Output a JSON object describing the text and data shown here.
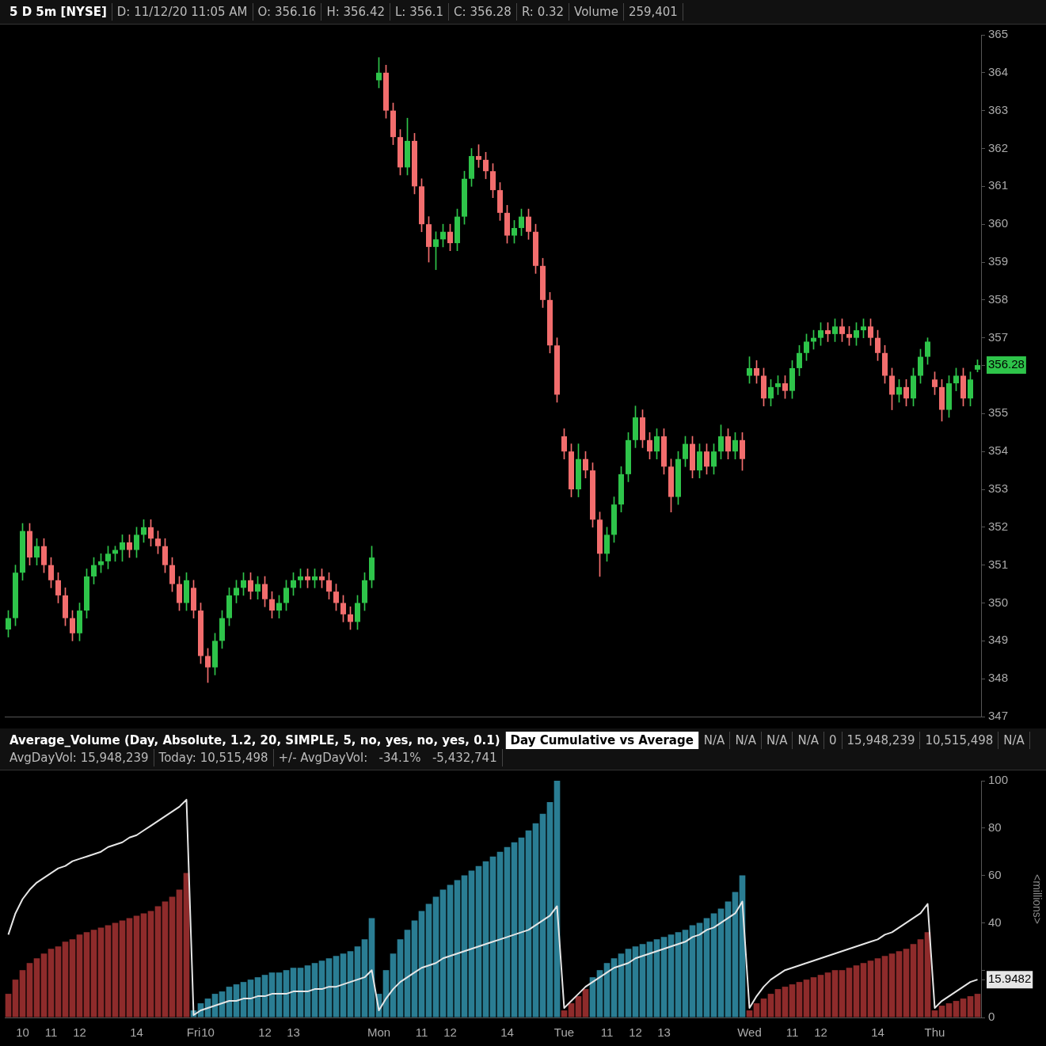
{
  "chart_data": [
    {
      "type": "candlestick",
      "title": "5 D 5m [NYSE]",
      "annotations": [
        "D: 11/12/20 11:05 AM",
        "O: 356.16",
        "H: 356.42",
        "L: 356.1",
        "C: 356.28",
        "R: 0.32",
        "Volume",
        "259,401"
      ],
      "categories": [
        null,
        null,
        null,
        null,
        null,
        null,
        null,
        null,
        null,
        null,
        null,
        null,
        null,
        null,
        null,
        null,
        null,
        null,
        null,
        null,
        null,
        null,
        null,
        null,
        null,
        null,
        null,
        null,
        null,
        null,
        null,
        null,
        null,
        null,
        null,
        null,
        null,
        null,
        null,
        null,
        null,
        null,
        null,
        null,
        null,
        null,
        null,
        null,
        null,
        null,
        null,
        null,
        null,
        null,
        null,
        null,
        null,
        null,
        null,
        null,
        null,
        null,
        null,
        null,
        null,
        null,
        null,
        null,
        null,
        null,
        null,
        null,
        null,
        null,
        null,
        null,
        null,
        null,
        null,
        null,
        null,
        null,
        null,
        null,
        null,
        null,
        null,
        null,
        null,
        null,
        null,
        null,
        null,
        null,
        null,
        null,
        null,
        null,
        null,
        null,
        null,
        null,
        null,
        null,
        null,
        null,
        null,
        null,
        null,
        null,
        null,
        null,
        null,
        null,
        null,
        null,
        null,
        null,
        null,
        null,
        null,
        null,
        null,
        null,
        null,
        null,
        null,
        null,
        null,
        null,
        null,
        null,
        null,
        null,
        null,
        null,
        null
      ],
      "ohlc": [
        [
          349.3,
          349.8,
          349.1,
          349.6
        ],
        [
          349.6,
          351.0,
          349.4,
          350.8
        ],
        [
          350.8,
          352.1,
          350.6,
          351.9
        ],
        [
          351.9,
          352.1,
          351.0,
          351.2
        ],
        [
          351.2,
          351.7,
          351.0,
          351.5
        ],
        [
          351.5,
          351.7,
          350.8,
          351.0
        ],
        [
          351.0,
          351.2,
          350.4,
          350.6
        ],
        [
          350.6,
          350.8,
          350.0,
          350.2
        ],
        [
          350.2,
          350.4,
          349.4,
          349.6
        ],
        [
          349.6,
          349.8,
          349.0,
          349.2
        ],
        [
          349.2,
          350.0,
          349.0,
          349.8
        ],
        [
          349.8,
          350.9,
          349.6,
          350.7
        ],
        [
          350.7,
          351.2,
          350.5,
          351.0
        ],
        [
          351.0,
          351.3,
          350.8,
          351.1
        ],
        [
          351.1,
          351.5,
          350.9,
          351.3
        ],
        [
          351.3,
          351.5,
          351.1,
          351.4
        ],
        [
          351.4,
          351.8,
          351.1,
          351.6
        ],
        [
          351.6,
          351.8,
          351.2,
          351.4
        ],
        [
          351.4,
          352.0,
          351.2,
          351.8
        ],
        [
          351.8,
          352.2,
          351.6,
          352.0
        ],
        [
          352.0,
          352.2,
          351.5,
          351.7
        ],
        [
          351.7,
          351.9,
          351.3,
          351.5
        ],
        [
          351.5,
          351.7,
          350.8,
          351.0
        ],
        [
          351.0,
          351.2,
          350.3,
          350.5
        ],
        [
          350.5,
          350.7,
          349.8,
          350.0
        ],
        [
          350.0,
          350.8,
          349.8,
          350.6
        ],
        [
          350.4,
          350.6,
          349.6,
          349.8
        ],
        [
          349.8,
          350.0,
          348.4,
          348.6
        ],
        [
          348.6,
          348.8,
          347.9,
          348.3
        ],
        [
          348.3,
          349.2,
          348.1,
          349.0
        ],
        [
          349.0,
          349.8,
          348.8,
          349.6
        ],
        [
          349.6,
          350.4,
          349.4,
          350.2
        ],
        [
          350.2,
          350.6,
          350.0,
          350.4
        ],
        [
          350.4,
          350.8,
          350.2,
          350.6
        ],
        [
          350.6,
          350.8,
          350.1,
          350.3
        ],
        [
          350.3,
          350.7,
          350.1,
          350.5
        ],
        [
          350.5,
          350.7,
          349.9,
          350.1
        ],
        [
          350.1,
          350.3,
          349.6,
          349.8
        ],
        [
          349.8,
          350.2,
          349.6,
          350.0
        ],
        [
          350.0,
          350.6,
          349.8,
          350.4
        ],
        [
          350.4,
          350.8,
          350.2,
          350.6
        ],
        [
          350.6,
          350.9,
          350.4,
          350.7
        ],
        [
          350.7,
          350.9,
          350.4,
          350.6
        ],
        [
          350.6,
          350.9,
          350.4,
          350.7
        ],
        [
          350.7,
          350.9,
          350.4,
          350.6
        ],
        [
          350.6,
          350.8,
          350.1,
          350.3
        ],
        [
          350.3,
          350.5,
          349.8,
          350.0
        ],
        [
          350.0,
          350.2,
          349.5,
          349.7
        ],
        [
          349.7,
          349.9,
          349.3,
          349.5
        ],
        [
          349.5,
          350.2,
          349.3,
          350.0
        ],
        [
          350.0,
          350.8,
          349.8,
          350.6
        ],
        [
          350.6,
          351.5,
          350.4,
          351.2
        ],
        [
          363.8,
          364.4,
          363.6,
          364.0
        ],
        [
          364.0,
          364.2,
          362.8,
          363.0
        ],
        [
          363.0,
          363.2,
          362.1,
          362.3
        ],
        [
          362.3,
          362.5,
          361.3,
          361.5
        ],
        [
          361.5,
          362.8,
          361.3,
          362.2
        ],
        [
          362.2,
          362.4,
          360.8,
          361.0
        ],
        [
          361.0,
          361.2,
          359.8,
          360.0
        ],
        [
          360.0,
          360.2,
          359.0,
          359.4
        ],
        [
          359.4,
          359.8,
          358.8,
          359.6
        ],
        [
          359.6,
          360.0,
          359.4,
          359.8
        ],
        [
          359.8,
          360.0,
          359.3,
          359.5
        ],
        [
          359.5,
          360.4,
          359.3,
          360.2
        ],
        [
          360.2,
          361.4,
          360.0,
          361.2
        ],
        [
          361.2,
          362.0,
          361.0,
          361.8
        ],
        [
          361.8,
          362.1,
          361.5,
          361.7
        ],
        [
          361.7,
          361.9,
          361.2,
          361.4
        ],
        [
          361.4,
          361.6,
          360.7,
          360.9
        ],
        [
          360.9,
          361.1,
          360.1,
          360.3
        ],
        [
          360.3,
          360.5,
          359.5,
          359.7
        ],
        [
          359.7,
          360.1,
          359.5,
          359.9
        ],
        [
          359.9,
          360.4,
          359.7,
          360.2
        ],
        [
          360.2,
          360.4,
          359.6,
          359.8
        ],
        [
          359.8,
          360.0,
          358.7,
          358.9
        ],
        [
          358.9,
          359.1,
          357.8,
          358.0
        ],
        [
          358.0,
          358.2,
          356.6,
          356.8
        ],
        [
          356.8,
          357.0,
          355.3,
          355.5
        ],
        [
          354.4,
          354.6,
          353.8,
          354.0
        ],
        [
          354.0,
          354.2,
          352.8,
          353.0
        ],
        [
          353.0,
          354.2,
          352.8,
          353.8
        ],
        [
          353.8,
          354.0,
          353.3,
          353.5
        ],
        [
          353.5,
          353.7,
          352.0,
          352.2
        ],
        [
          352.2,
          352.4,
          350.7,
          351.3
        ],
        [
          351.3,
          352.0,
          351.1,
          351.8
        ],
        [
          351.8,
          352.8,
          351.6,
          352.6
        ],
        [
          352.6,
          353.6,
          352.4,
          353.4
        ],
        [
          353.4,
          354.5,
          353.2,
          354.3
        ],
        [
          354.3,
          355.2,
          354.1,
          354.9
        ],
        [
          354.9,
          355.1,
          354.1,
          354.3
        ],
        [
          354.3,
          354.5,
          353.8,
          354.0
        ],
        [
          354.0,
          354.6,
          353.8,
          354.4
        ],
        [
          354.4,
          354.6,
          353.4,
          353.6
        ],
        [
          353.6,
          353.8,
          352.4,
          352.8
        ],
        [
          352.8,
          354.0,
          352.6,
          353.8
        ],
        [
          353.8,
          354.4,
          353.6,
          354.2
        ],
        [
          354.2,
          354.4,
          353.3,
          353.5
        ],
        [
          353.5,
          354.2,
          353.3,
          354.0
        ],
        [
          354.0,
          354.2,
          353.4,
          353.6
        ],
        [
          353.6,
          354.2,
          353.4,
          354.0
        ],
        [
          354.0,
          354.7,
          353.8,
          354.4
        ],
        [
          354.4,
          354.6,
          353.8,
          354.0
        ],
        [
          354.0,
          354.5,
          353.8,
          354.3
        ],
        [
          354.3,
          354.5,
          353.5,
          353.8
        ],
        [
          356.0,
          356.5,
          355.8,
          356.2
        ],
        [
          356.2,
          356.4,
          355.8,
          356.0
        ],
        [
          356.0,
          356.2,
          355.2,
          355.4
        ],
        [
          355.4,
          355.9,
          355.2,
          355.7
        ],
        [
          355.7,
          356.0,
          355.5,
          355.8
        ],
        [
          355.8,
          356.0,
          355.4,
          355.6
        ],
        [
          355.6,
          356.4,
          355.4,
          356.2
        ],
        [
          356.2,
          356.8,
          356.0,
          356.6
        ],
        [
          356.6,
          357.1,
          356.4,
          356.9
        ],
        [
          356.9,
          357.2,
          356.7,
          357.0
        ],
        [
          357.0,
          357.4,
          356.8,
          357.2
        ],
        [
          357.2,
          357.4,
          356.9,
          357.1
        ],
        [
          357.1,
          357.5,
          356.9,
          357.3
        ],
        [
          357.3,
          357.5,
          356.9,
          357.1
        ],
        [
          357.1,
          357.3,
          356.8,
          357.0
        ],
        [
          357.0,
          357.4,
          356.8,
          357.2
        ],
        [
          357.2,
          357.5,
          357.0,
          357.3
        ],
        [
          357.3,
          357.5,
          356.8,
          357.0
        ],
        [
          357.0,
          357.2,
          356.4,
          356.6
        ],
        [
          356.6,
          356.8,
          355.8,
          356.0
        ],
        [
          356.0,
          356.2,
          355.1,
          355.5
        ],
        [
          355.5,
          355.9,
          355.3,
          355.7
        ],
        [
          355.7,
          355.9,
          355.2,
          355.4
        ],
        [
          355.4,
          356.2,
          355.2,
          356.0
        ],
        [
          356.0,
          356.7,
          355.8,
          356.5
        ],
        [
          356.5,
          357.0,
          356.3,
          356.9
        ],
        [
          355.9,
          356.1,
          355.5,
          355.7
        ],
        [
          355.7,
          355.9,
          354.8,
          355.1
        ],
        [
          355.1,
          356.0,
          354.9,
          355.8
        ],
        [
          355.8,
          356.2,
          355.6,
          356.0
        ],
        [
          356.0,
          356.2,
          355.2,
          355.4
        ],
        [
          355.4,
          356.1,
          355.2,
          355.9
        ],
        [
          356.16,
          356.42,
          356.1,
          356.28
        ]
      ],
      "colors": [
        "#2ec44a",
        "#2ec44a",
        "#2ec44a",
        "#f26d6d",
        "#2ec44a",
        "#f26d6d",
        "#f26d6d",
        "#f26d6d",
        "#f26d6d",
        "#f26d6d",
        "#2ec44a",
        "#2ec44a",
        "#2ec44a",
        "#2ec44a",
        "#2ec44a",
        "#2ec44a",
        "#2ec44a",
        "#f26d6d",
        "#2ec44a",
        "#2ec44a",
        "#f26d6d",
        "#f26d6d",
        "#f26d6d",
        "#f26d6d",
        "#f26d6d",
        "#2ec44a",
        "#f26d6d",
        "#f26d6d",
        "#f26d6d",
        "#2ec44a",
        "#2ec44a",
        "#2ec44a",
        "#2ec44a",
        "#2ec44a",
        "#f26d6d",
        "#2ec44a",
        "#f26d6d",
        "#f26d6d",
        "#2ec44a",
        "#2ec44a",
        "#2ec44a",
        "#2ec44a",
        "#f26d6d",
        "#2ec44a",
        "#f26d6d",
        "#f26d6d",
        "#f26d6d",
        "#f26d6d",
        "#f26d6d",
        "#2ec44a",
        "#2ec44a",
        "#2ec44a",
        "#2ec44a",
        "#f26d6d",
        "#f26d6d",
        "#f26d6d",
        "#2ec44a",
        "#f26d6d",
        "#f26d6d",
        "#f26d6d",
        "#2ec44a",
        "#2ec44a",
        "#f26d6d",
        "#2ec44a",
        "#2ec44a",
        "#2ec44a",
        "#f26d6d",
        "#f26d6d",
        "#f26d6d",
        "#f26d6d",
        "#f26d6d",
        "#2ec44a",
        "#2ec44a",
        "#f26d6d",
        "#f26d6d",
        "#f26d6d",
        "#f26d6d",
        "#f26d6d",
        "#f26d6d",
        "#f26d6d",
        "#2ec44a",
        "#f26d6d",
        "#f26d6d",
        "#f26d6d",
        "#2ec44a",
        "#2ec44a",
        "#2ec44a",
        "#2ec44a",
        "#2ec44a",
        "#f26d6d",
        "#f26d6d",
        "#2ec44a",
        "#f26d6d",
        "#f26d6d",
        "#2ec44a",
        "#2ec44a",
        "#f26d6d",
        "#2ec44a",
        "#f26d6d",
        "#2ec44a",
        "#2ec44a",
        "#f26d6d",
        "#2ec44a",
        "#f26d6d",
        "#2ec44a",
        "#f26d6d",
        "#f26d6d",
        "#2ec44a",
        "#2ec44a",
        "#f26d6d",
        "#2ec44a",
        "#2ec44a",
        "#2ec44a",
        "#2ec44a",
        "#2ec44a",
        "#f26d6d",
        "#2ec44a",
        "#f26d6d",
        "#f26d6d",
        "#2ec44a",
        "#2ec44a",
        "#f26d6d",
        "#f26d6d",
        "#f26d6d",
        "#f26d6d",
        "#2ec44a",
        "#f26d6d",
        "#2ec44a",
        "#2ec44a",
        "#2ec44a",
        "#f26d6d",
        "#f26d6d",
        "#2ec44a",
        "#2ec44a",
        "#f26d6d",
        "#2ec44a",
        "#2ec44a"
      ],
      "ylim": [
        347,
        365
      ],
      "yticks": [
        347,
        348,
        349,
        350,
        351,
        352,
        353,
        354,
        355,
        {
          "value": 356.28,
          "label": "356.28"
        },
        357,
        358,
        359,
        360,
        361,
        362,
        363,
        364,
        365
      ],
      "tick_labels": "y"
    },
    {
      "type": "bar",
      "title": "Average_Volume (Day, Absolute, 1.2, 20, SIMPLE, 5, no, yes, no, yes, 0.1)",
      "subtitle": "Day Cumulative vs Average",
      "annotations": [
        "N/A",
        "N/A",
        "N/A",
        "N/A",
        "0",
        "15,948,239",
        "10,515,498",
        "N/A",
        "AvgDayVol: 15,948,239",
        "Today: 10,515,498",
        "+/- AvgDayVol:   -34.1%   -5,432,741"
      ],
      "categories": [
        null,
        null,
        "10",
        null,
        null,
        null,
        "11",
        null,
        null,
        null,
        "12",
        null,
        null,
        null,
        null,
        null,
        null,
        null,
        "14",
        null,
        null,
        null,
        null,
        null,
        null,
        null,
        "Fri",
        null,
        "10",
        null,
        null,
        null,
        null,
        null,
        null,
        null,
        "12",
        null,
        null,
        null,
        "13",
        null,
        null,
        null,
        null,
        null,
        null,
        null,
        null,
        null,
        null,
        null,
        "Mon",
        null,
        null,
        null,
        null,
        null,
        "11",
        null,
        null,
        null,
        "12",
        null,
        null,
        null,
        null,
        null,
        null,
        null,
        "14",
        null,
        null,
        null,
        null,
        null,
        null,
        null,
        "Tue",
        null,
        null,
        null,
        null,
        null,
        "11",
        null,
        null,
        null,
        "12",
        null,
        null,
        null,
        "13",
        null,
        null,
        null,
        null,
        null,
        null,
        null,
        null,
        null,
        null,
        null,
        "Wed",
        null,
        null,
        null,
        null,
        null,
        "11",
        null,
        null,
        null,
        "12",
        null,
        null,
        null,
        null,
        null,
        null,
        null,
        "14",
        null,
        null,
        null,
        null,
        null,
        null,
        null,
        "Thu",
        null,
        null,
        null,
        null,
        null,
        null
      ],
      "series": [
        {
          "type": "bar",
          "values": [
            10,
            16,
            20,
            23,
            25,
            27,
            29,
            30,
            32,
            33,
            35,
            36,
            37,
            38,
            39,
            40,
            41,
            42,
            43,
            44,
            45,
            47,
            49,
            51,
            54,
            61,
            3,
            6,
            8,
            10,
            11,
            13,
            14,
            15,
            16,
            17,
            18,
            19,
            19,
            20,
            21,
            21,
            22,
            23,
            24,
            25,
            26,
            27,
            28,
            30,
            33,
            42,
            10,
            20,
            27,
            33,
            37,
            41,
            45,
            48,
            51,
            54,
            56,
            58,
            60,
            62,
            64,
            66,
            68,
            70,
            72,
            74,
            76,
            79,
            82,
            86,
            91,
            100,
            3,
            6,
            9,
            12,
            17,
            20,
            23,
            25,
            27,
            29,
            30,
            31,
            32,
            33,
            34,
            35,
            36,
            37,
            39,
            40,
            42,
            44,
            46,
            49,
            53,
            60,
            3,
            6,
            8,
            10,
            12,
            13,
            14,
            15,
            16,
            17,
            18,
            19,
            20,
            20,
            21,
            22,
            23,
            24,
            25,
            26,
            27,
            28,
            29,
            31,
            33,
            36,
            3,
            5,
            6,
            7,
            8,
            9,
            10
          ],
          "colors": [
            "#8e2b2b",
            "#8e2b2b",
            "#8e2b2b",
            "#8e2b2b",
            "#8e2b2b",
            "#8e2b2b",
            "#8e2b2b",
            "#8e2b2b",
            "#8e2b2b",
            "#8e2b2b",
            "#8e2b2b",
            "#8e2b2b",
            "#8e2b2b",
            "#8e2b2b",
            "#8e2b2b",
            "#8e2b2b",
            "#8e2b2b",
            "#8e2b2b",
            "#8e2b2b",
            "#8e2b2b",
            "#8e2b2b",
            "#8e2b2b",
            "#8e2b2b",
            "#8e2b2b",
            "#8e2b2b",
            "#8e2b2b",
            "#2a7d93",
            "#2a7d93",
            "#2a7d93",
            "#2a7d93",
            "#2a7d93",
            "#2a7d93",
            "#2a7d93",
            "#2a7d93",
            "#2a7d93",
            "#2a7d93",
            "#2a7d93",
            "#2a7d93",
            "#2a7d93",
            "#2a7d93",
            "#2a7d93",
            "#2a7d93",
            "#2a7d93",
            "#2a7d93",
            "#2a7d93",
            "#2a7d93",
            "#2a7d93",
            "#2a7d93",
            "#2a7d93",
            "#2a7d93",
            "#2a7d93",
            "#2a7d93",
            "#2a7d93",
            "#2a7d93",
            "#2a7d93",
            "#2a7d93",
            "#2a7d93",
            "#2a7d93",
            "#2a7d93",
            "#2a7d93",
            "#2a7d93",
            "#2a7d93",
            "#2a7d93",
            "#2a7d93",
            "#2a7d93",
            "#2a7d93",
            "#2a7d93",
            "#2a7d93",
            "#2a7d93",
            "#2a7d93",
            "#2a7d93",
            "#2a7d93",
            "#2a7d93",
            "#2a7d93",
            "#2a7d93",
            "#2a7d93",
            "#2a7d93",
            "#2a7d93",
            "#8e2b2b",
            "#8e2b2b",
            "#8e2b2b",
            "#8e2b2b",
            "#2a7d93",
            "#2a7d93",
            "#2a7d93",
            "#2a7d93",
            "#2a7d93",
            "#2a7d93",
            "#2a7d93",
            "#2a7d93",
            "#2a7d93",
            "#2a7d93",
            "#2a7d93",
            "#2a7d93",
            "#2a7d93",
            "#2a7d93",
            "#2a7d93",
            "#2a7d93",
            "#2a7d93",
            "#2a7d93",
            "#2a7d93",
            "#2a7d93",
            "#2a7d93",
            "#2a7d93",
            "#8e2b2b",
            "#8e2b2b",
            "#8e2b2b",
            "#8e2b2b",
            "#8e2b2b",
            "#8e2b2b",
            "#8e2b2b",
            "#8e2b2b",
            "#8e2b2b",
            "#8e2b2b",
            "#8e2b2b",
            "#8e2b2b",
            "#8e2b2b",
            "#8e2b2b",
            "#8e2b2b",
            "#8e2b2b",
            "#8e2b2b",
            "#8e2b2b",
            "#8e2b2b",
            "#8e2b2b",
            "#8e2b2b",
            "#8e2b2b",
            "#8e2b2b",
            "#8e2b2b",
            "#8e2b2b",
            "#8e2b2b",
            "#8e2b2b",
            "#8e2b2b",
            "#8e2b2b",
            "#8e2b2b",
            "#8e2b2b",
            "#8e2b2b",
            "#8e2b2b"
          ]
        },
        {
          "type": "line",
          "color": "#e6e6e6",
          "values": [
            35,
            44,
            50,
            54,
            57,
            59,
            61,
            63,
            64,
            66,
            67,
            68,
            69,
            70,
            72,
            73,
            74,
            76,
            77,
            79,
            81,
            83,
            85,
            87,
            89,
            92,
            1,
            3,
            4,
            5,
            6,
            7,
            7,
            8,
            8,
            9,
            9,
            10,
            10,
            10,
            11,
            11,
            11,
            12,
            12,
            13,
            13,
            14,
            15,
            16,
            17,
            20,
            3,
            8,
            12,
            15,
            17,
            19,
            21,
            22,
            23,
            25,
            26,
            27,
            28,
            29,
            30,
            31,
            32,
            33,
            34,
            35,
            36,
            37,
            39,
            41,
            43,
            47,
            4,
            7,
            10,
            13,
            15,
            17,
            19,
            21,
            22,
            23,
            25,
            26,
            27,
            28,
            29,
            30,
            31,
            32,
            34,
            35,
            37,
            38,
            40,
            42,
            44,
            49,
            4,
            9,
            13,
            16,
            18,
            20,
            21,
            22,
            23,
            24,
            25,
            26,
            27,
            28,
            29,
            30,
            31,
            32,
            33,
            35,
            36,
            38,
            40,
            42,
            44,
            48,
            4,
            7,
            9,
            11,
            13,
            15,
            16
          ]
        }
      ],
      "marker": "none",
      "ylim": [
        0,
        100
      ],
      "yticks": [
        0,
        {
          "value": 15.9482,
          "label": "15.9482"
        },
        {
          "value": 20,
          "label": null
        },
        40,
        60,
        80,
        100
      ],
      "ylabel": "<millions>"
    }
  ]
}
